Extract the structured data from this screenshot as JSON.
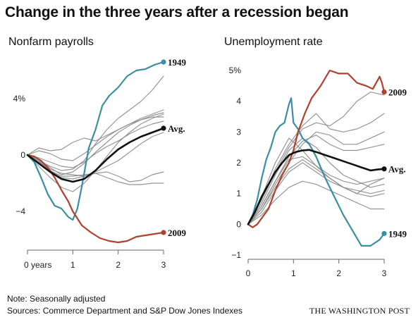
{
  "title": "Change in the three years after a recession began",
  "footer": {
    "note": "Note: Seasonally adjusted",
    "sources": "Sources: Commerce Department and S&P Dow Jones Indexes",
    "credit": "THE WASHINGTON POST"
  },
  "colors": {
    "highlight_1949": "#3a8fa3",
    "highlight_2009": "#b04030",
    "average": "#111111",
    "others": "#8a8a8a"
  },
  "chart_data": [
    {
      "type": "line",
      "title": "Nonfarm payrolls",
      "xlabel": "",
      "ylabel": "",
      "xlim": [
        0,
        3
      ],
      "ylim": [
        -6.5,
        7.5
      ],
      "x_ticks": [
        0,
        1,
        2,
        3
      ],
      "x_tick_labels": [
        "0 years",
        "1",
        "2",
        "3"
      ],
      "y_ticks": [
        -4,
        0,
        4
      ],
      "y_tick_labels": [
        "−4",
        "0",
        "4%"
      ],
      "grid": false,
      "series": [
        {
          "name": "1949",
          "role": "highlight_1949",
          "label_end": true,
          "x": [
            0,
            0.15,
            0.3,
            0.45,
            0.6,
            0.75,
            0.9,
            1.0,
            1.1,
            1.2,
            1.35,
            1.5,
            1.65,
            1.8,
            2.0,
            2.2,
            2.4,
            2.6,
            2.8,
            3.0
          ],
          "values": [
            0,
            -0.5,
            -1.6,
            -2.8,
            -3.6,
            -3.8,
            -4.4,
            -4.6,
            -3.8,
            -2.2,
            0.5,
            1.8,
            3.5,
            4.2,
            4.8,
            5.6,
            6.0,
            6.1,
            6.4,
            6.6
          ]
        },
        {
          "name": "2009",
          "role": "highlight_2009",
          "label_end": true,
          "x": [
            0,
            0.15,
            0.3,
            0.45,
            0.6,
            0.75,
            0.9,
            1.0,
            1.2,
            1.4,
            1.6,
            1.8,
            2.0,
            2.2,
            2.4,
            2.6,
            2.8,
            3.0
          ],
          "values": [
            0,
            -0.1,
            -0.4,
            -0.9,
            -1.6,
            -2.5,
            -3.3,
            -4.0,
            -5.0,
            -5.5,
            -5.9,
            -6.1,
            -6.2,
            -6.1,
            -5.8,
            -5.7,
            -5.6,
            -5.5
          ]
        },
        {
          "name": "Avg.",
          "role": "average",
          "label_end": true,
          "x": [
            0,
            0.25,
            0.5,
            0.75,
            1.0,
            1.25,
            1.5,
            1.75,
            2.0,
            2.25,
            2.5,
            2.75,
            3.0
          ],
          "values": [
            0,
            -0.6,
            -1.2,
            -1.7,
            -1.9,
            -1.7,
            -1.1,
            -0.3,
            0.4,
            0.9,
            1.3,
            1.6,
            1.9
          ]
        },
        {
          "role": "others",
          "x": [
            0,
            0.25,
            0.5,
            0.75,
            1.0,
            1.25,
            1.5,
            1.75,
            2.0,
            2.25,
            2.5,
            2.75,
            3.0
          ],
          "values": [
            0,
            -0.4,
            -0.8,
            -1.1,
            -1.0,
            -0.4,
            0.8,
            1.8,
            2.6,
            3.2,
            3.8,
            4.6,
            5.6
          ]
        },
        {
          "role": "others",
          "x": [
            0,
            0.25,
            0.5,
            0.75,
            1.0,
            1.25,
            1.5,
            1.75,
            2.0,
            2.25,
            2.5,
            2.75,
            3.0
          ],
          "values": [
            0,
            0.5,
            0.3,
            0.4,
            0.9,
            1.2,
            1.0,
            1.4,
            1.8,
            2.2,
            2.6,
            2.9,
            3.2
          ]
        },
        {
          "role": "others",
          "x": [
            0,
            0.25,
            0.5,
            0.75,
            1.0,
            1.25,
            1.5,
            1.75,
            2.0,
            2.25,
            2.5,
            2.75,
            3.0
          ],
          "values": [
            0,
            -0.8,
            -1.6,
            -2.3,
            -2.6,
            -2.0,
            -1.1,
            -0.1,
            0.9,
            1.6,
            2.2,
            2.6,
            2.9
          ]
        },
        {
          "role": "others",
          "x": [
            0,
            0.25,
            0.5,
            0.75,
            1.0,
            1.25,
            1.5,
            1.75,
            2.0,
            2.25,
            2.5,
            2.75,
            3.0
          ],
          "values": [
            0,
            -0.3,
            -0.9,
            -1.4,
            -1.2,
            -0.6,
            0.2,
            0.9,
            1.6,
            2.1,
            2.5,
            2.7,
            2.7
          ]
        },
        {
          "role": "others",
          "x": [
            0,
            0.25,
            0.5,
            0.75,
            1.0,
            1.25,
            1.5,
            1.75,
            2.0,
            2.25,
            2.5,
            2.75,
            3.0
          ],
          "values": [
            0,
            -0.2,
            -0.5,
            -0.8,
            -0.9,
            -0.5,
            0.1,
            0.6,
            1.0,
            1.5,
            1.9,
            2.2,
            2.4
          ]
        },
        {
          "role": "others",
          "x": [
            0,
            0.25,
            0.5,
            0.75,
            1.0,
            1.25,
            1.5,
            1.75,
            2.0,
            2.25,
            2.5,
            2.75,
            3.0
          ],
          "values": [
            0,
            -0.5,
            -1.0,
            -1.3,
            -1.4,
            -1.5,
            -1.2,
            -0.8,
            -0.4,
            0.2,
            0.8,
            1.3,
            1.6
          ]
        },
        {
          "role": "others",
          "x": [
            0,
            0.25,
            0.5,
            0.75,
            1.0,
            1.25,
            1.5,
            1.75,
            2.0,
            2.25,
            2.5,
            2.75,
            3.0
          ],
          "values": [
            0,
            -0.4,
            -1.1,
            -1.6,
            -1.7,
            -1.5,
            -1.3,
            -1.2,
            -1.5,
            -1.9,
            -1.8,
            -1.4,
            -1.2
          ]
        },
        {
          "role": "others",
          "x": [
            0,
            0.25,
            0.5,
            0.75,
            1.0,
            1.25,
            1.5,
            1.75,
            2.0,
            2.25,
            2.5,
            2.75,
            3.0
          ],
          "values": [
            0,
            -0.5,
            -1.1,
            -1.5,
            -1.5,
            -1.4,
            -1.3,
            -1.6,
            -1.9,
            -2.1,
            -2.1,
            -2.0,
            -2.0
          ]
        },
        {
          "role": "others",
          "x": [
            0,
            0.25,
            0.5,
            0.75,
            1.0,
            1.25,
            1.5,
            1.75,
            2.0,
            2.25,
            2.5,
            2.75,
            3.0
          ],
          "values": [
            0,
            0.3,
            0.1,
            -0.3,
            -0.4,
            0.1,
            0.7,
            1.3,
            1.8,
            2.2,
            2.5,
            2.8,
            3.0
          ]
        }
      ]
    },
    {
      "type": "line",
      "title": "Unemployment rate",
      "xlabel": "",
      "ylabel": "",
      "xlim": [
        0,
        3
      ],
      "ylim": [
        -1,
        5
      ],
      "x_ticks": [
        0,
        1,
        2,
        3
      ],
      "x_tick_labels": [
        "0",
        "1",
        "2",
        "3"
      ],
      "y_ticks": [
        -1,
        0,
        1,
        2,
        3,
        4,
        5
      ],
      "y_tick_labels": [
        "−1",
        "0",
        "1",
        "2",
        "3",
        "4",
        "5%"
      ],
      "grid": false,
      "series": [
        {
          "name": "1949",
          "role": "highlight_1949",
          "label_end": true,
          "x": [
            0,
            0.1,
            0.2,
            0.3,
            0.4,
            0.5,
            0.6,
            0.7,
            0.8,
            0.9,
            0.95,
            1.0,
            1.1,
            1.2,
            1.35,
            1.5,
            1.7,
            1.9,
            2.1,
            2.3,
            2.5,
            2.7,
            2.9,
            3.0
          ],
          "values": [
            0,
            0.3,
            0.8,
            1.5,
            2.1,
            2.5,
            3.0,
            3.2,
            3.3,
            3.9,
            4.1,
            3.3,
            3.1,
            2.8,
            2.6,
            2.2,
            1.5,
            0.9,
            0.3,
            -0.2,
            -0.7,
            -0.7,
            -0.5,
            -0.3
          ]
        },
        {
          "name": "2009",
          "role": "highlight_2009",
          "label_end": true,
          "x": [
            0,
            0.1,
            0.2,
            0.3,
            0.45,
            0.6,
            0.75,
            0.9,
            1.0,
            1.1,
            1.25,
            1.4,
            1.6,
            1.8,
            2.0,
            2.2,
            2.4,
            2.6,
            2.75,
            2.9,
            2.95,
            3.0
          ],
          "values": [
            0,
            -0.1,
            0.0,
            0.2,
            0.5,
            1.1,
            1.6,
            2.0,
            2.4,
            3.0,
            3.6,
            4.1,
            4.5,
            5.0,
            4.9,
            4.9,
            4.6,
            4.5,
            4.4,
            4.8,
            4.6,
            4.3
          ]
        },
        {
          "name": "Avg.",
          "role": "average",
          "label_end": true,
          "x": [
            0,
            0.15,
            0.3,
            0.45,
            0.6,
            0.75,
            0.9,
            1.05,
            1.2,
            1.35,
            1.5,
            1.7,
            1.9,
            2.1,
            2.3,
            2.5,
            2.7,
            2.85,
            3.0
          ],
          "values": [
            0,
            0.4,
            0.9,
            1.3,
            1.7,
            2.0,
            2.25,
            2.35,
            2.4,
            2.42,
            2.35,
            2.25,
            2.15,
            2.05,
            1.95,
            1.85,
            1.75,
            1.78,
            1.8
          ]
        },
        {
          "role": "others",
          "x": [
            0,
            0.3,
            0.6,
            0.9,
            1.2,
            1.5,
            1.8,
            2.1,
            2.4,
            2.7,
            3.0
          ],
          "values": [
            0,
            0.8,
            1.8,
            2.6,
            3.2,
            3.6,
            3.1,
            3.0,
            3.1,
            3.3,
            3.6
          ]
        },
        {
          "role": "others",
          "x": [
            0,
            0.3,
            0.6,
            0.9,
            1.2,
            1.5,
            1.8,
            2.1,
            2.4,
            2.7,
            3.0
          ],
          "values": [
            0,
            0.5,
            1.3,
            2.0,
            2.6,
            3.0,
            2.9,
            2.6,
            2.6,
            2.8,
            3.0
          ]
        },
        {
          "role": "others",
          "x": [
            0,
            0.3,
            0.6,
            0.9,
            1.2,
            1.5,
            1.8,
            2.1,
            2.4,
            2.7,
            3.0
          ],
          "values": [
            0,
            0.9,
            2.0,
            2.8,
            2.4,
            1.9,
            1.5,
            1.2,
            1.0,
            1.3,
            1.5
          ]
        },
        {
          "role": "others",
          "x": [
            0,
            0.3,
            0.6,
            0.9,
            1.2,
            1.5,
            1.8,
            2.1,
            2.4,
            2.7,
            3.0
          ],
          "values": [
            0,
            0.6,
            1.4,
            2.1,
            2.2,
            1.9,
            1.6,
            1.4,
            1.3,
            1.4,
            1.5
          ]
        },
        {
          "role": "others",
          "x": [
            0,
            0.3,
            0.6,
            0.9,
            1.2,
            1.5,
            1.8,
            2.1,
            2.4,
            2.7,
            3.0
          ],
          "values": [
            0,
            0.4,
            1.1,
            1.7,
            2.0,
            1.7,
            1.4,
            1.2,
            1.0,
            0.9,
            1.0
          ]
        },
        {
          "role": "others",
          "x": [
            0,
            0.3,
            0.6,
            0.9,
            1.2,
            1.5,
            1.8,
            2.1,
            2.4,
            2.7,
            3.0
          ],
          "values": [
            0,
            0.7,
            1.6,
            2.4,
            2.8,
            2.5,
            2.0,
            1.6,
            1.4,
            1.2,
            1.3
          ]
        },
        {
          "role": "others",
          "x": [
            0,
            0.3,
            0.6,
            0.9,
            1.2,
            1.5,
            1.8,
            2.1,
            2.4,
            2.7,
            3.0
          ],
          "values": [
            0,
            0.3,
            0.8,
            1.2,
            1.4,
            1.3,
            1.1,
            0.9,
            0.7,
            0.5,
            0.5
          ]
        },
        {
          "role": "others",
          "x": [
            0,
            0.3,
            0.6,
            0.9,
            1.2,
            1.5,
            1.8,
            2.1,
            2.4,
            2.7,
            3.0
          ],
          "values": [
            0,
            0.5,
            1.2,
            1.8,
            2.1,
            1.8,
            1.5,
            1.2,
            1.1,
            1.0,
            1.1
          ]
        },
        {
          "role": "others",
          "x": [
            0,
            0.3,
            0.6,
            0.9,
            1.2,
            1.5,
            1.8,
            2.1,
            2.4,
            2.7,
            3.0
          ],
          "values": [
            0,
            0.6,
            1.4,
            2.2,
            2.7,
            2.9,
            2.6,
            2.4,
            2.4,
            2.5,
            2.6
          ]
        },
        {
          "role": "others",
          "x": [
            0,
            0.3,
            0.6,
            0.9,
            1.2,
            1.5,
            1.8,
            2.1,
            2.4,
            2.7,
            3.0
          ],
          "values": [
            0,
            0.8,
            1.7,
            2.5,
            3.1,
            3.3,
            3.2,
            3.5,
            4.0,
            4.3,
            4.2
          ]
        }
      ]
    }
  ]
}
